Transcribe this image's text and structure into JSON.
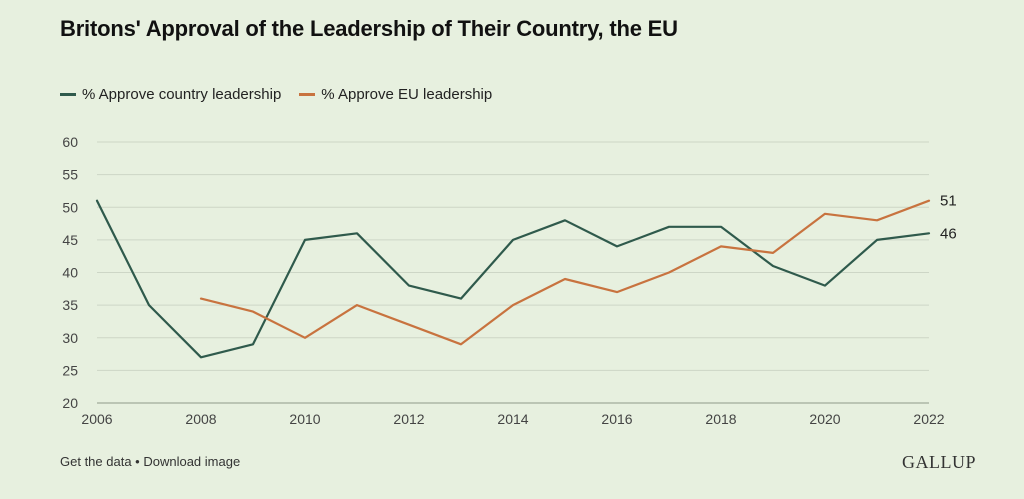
{
  "title": "Britons' Approval of the Leadership of Their Country, the EU",
  "footer": {
    "get_data": "Get the data",
    "separator": " • ",
    "download": "Download image",
    "brand": "GALLUP"
  },
  "colors": {
    "background": "#e7f0df",
    "country": "#2f5a4c",
    "eu": "#c8733f",
    "grid": "#cdd6c6"
  },
  "chart_data": {
    "type": "line",
    "title": "Britons' Approval of the Leadership of Their Country, the EU",
    "xlabel": "",
    "ylabel": "",
    "xlim": [
      2006,
      2022
    ],
    "ylim": [
      20,
      60
    ],
    "x_ticks": [
      2006,
      2008,
      2010,
      2012,
      2014,
      2016,
      2018,
      2020,
      2022
    ],
    "y_ticks": [
      20,
      25,
      30,
      35,
      40,
      45,
      50,
      55,
      60
    ],
    "grid": true,
    "legend_position": "top-left",
    "series": [
      {
        "name": "% Approve country leadership",
        "color": "#2f5a4c",
        "x": [
          2006,
          2007,
          2008,
          2009,
          2010,
          2011,
          2012,
          2013,
          2014,
          2015,
          2016,
          2017,
          2018,
          2019,
          2020,
          2021,
          2022
        ],
        "y": [
          51,
          35,
          27,
          29,
          45,
          46,
          38,
          36,
          45,
          48,
          44,
          47,
          47,
          41,
          38,
          45,
          46
        ],
        "end_label": "46"
      },
      {
        "name": "% Approve EU leadership",
        "color": "#c8733f",
        "x": [
          2008,
          2009,
          2010,
          2011,
          2012,
          2013,
          2014,
          2015,
          2016,
          2017,
          2018,
          2019,
          2020,
          2021,
          2022
        ],
        "y": [
          36,
          34,
          30,
          35,
          32,
          29,
          35,
          39,
          37,
          40,
          44,
          43,
          49,
          48,
          51
        ],
        "end_label": "51"
      }
    ]
  }
}
